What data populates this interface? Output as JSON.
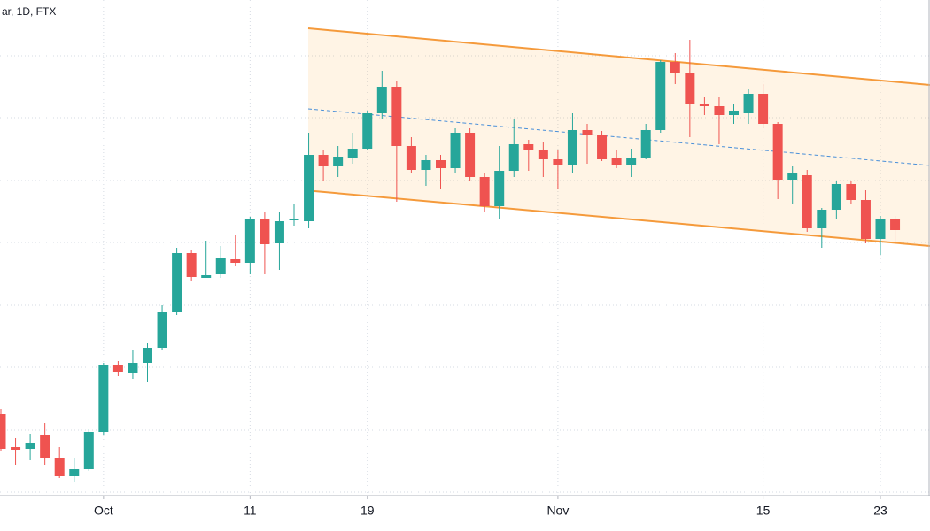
{
  "chart_data": {
    "type": "candlestick",
    "title": "ar, 1D, FTX",
    "categories": [
      null,
      null,
      null,
      null,
      null,
      null,
      null,
      "Oct",
      null,
      null,
      null,
      null,
      null,
      null,
      null,
      null,
      null,
      "11",
      null,
      null,
      null,
      null,
      null,
      null,
      null,
      "19",
      null,
      null,
      null,
      null,
      null,
      null,
      null,
      null,
      null,
      null,
      null,
      null,
      "Nov",
      null,
      null,
      null,
      null,
      null,
      null,
      null,
      null,
      null,
      null,
      null,
      null,
      null,
      "15",
      null,
      null,
      null,
      null,
      null,
      null,
      null,
      "23",
      null
    ],
    "open": [
      92,
      55,
      53,
      68,
      43,
      22,
      30,
      72,
      148,
      138,
      150,
      167,
      207,
      274,
      246,
      250,
      267,
      263,
      312,
      285,
      311,
      310,
      385,
      372,
      382,
      392,
      432,
      462,
      395,
      368,
      379,
      370,
      410,
      360,
      327,
      367,
      397,
      390,
      380,
      373,
      413,
      407,
      381,
      374,
      382,
      413,
      490,
      478,
      442,
      440,
      430,
      432,
      454,
      420,
      357,
      362,
      302,
      323,
      352,
      334,
      290,
      313
    ],
    "high": [
      98,
      65,
      70,
      82,
      55,
      42,
      75,
      150,
      152,
      165,
      172,
      215,
      280,
      278,
      288,
      282,
      295,
      315,
      320,
      320,
      330,
      410,
      390,
      395,
      410,
      435,
      480,
      468,
      405,
      385,
      385,
      415,
      415,
      365,
      395,
      425,
      402,
      400,
      390,
      432,
      420,
      412,
      390,
      392,
      420,
      492,
      500,
      515,
      450,
      450,
      442,
      460,
      465,
      422,
      372,
      368,
      325,
      355,
      356,
      345,
      316,
      316
    ],
    "low": [
      50,
      35,
      40,
      35,
      20,
      15,
      28,
      68,
      135,
      132,
      128,
      165,
      204,
      242,
      246,
      246,
      260,
      250,
      250,
      255,
      305,
      302,
      355,
      360,
      375,
      390,
      425,
      332,
      365,
      350,
      347,
      365,
      355,
      320,
      313,
      360,
      367,
      360,
      347,
      365,
      375,
      378,
      370,
      360,
      380,
      410,
      465,
      405,
      430,
      397,
      420,
      420,
      415,
      335,
      330,
      298,
      280,
      312,
      330,
      285,
      272,
      285
    ],
    "close": [
      53,
      51,
      60,
      42,
      22,
      30,
      72,
      148,
      140,
      150,
      167,
      207,
      274,
      247,
      249,
      268,
      263,
      312,
      284,
      310,
      312,
      385,
      372,
      383,
      392,
      432,
      462,
      395,
      368,
      379,
      370,
      410,
      360,
      327,
      367,
      397,
      390,
      380,
      373,
      413,
      407,
      380,
      374,
      382,
      413,
      490,
      478,
      442,
      440,
      430,
      435,
      454,
      420,
      357,
      365,
      302,
      323,
      352,
      334,
      290,
      313,
      300
    ],
    "ylim": [
      0,
      560
    ],
    "up_color": "#26a69a",
    "down_color": "#ef5350"
  }
}
